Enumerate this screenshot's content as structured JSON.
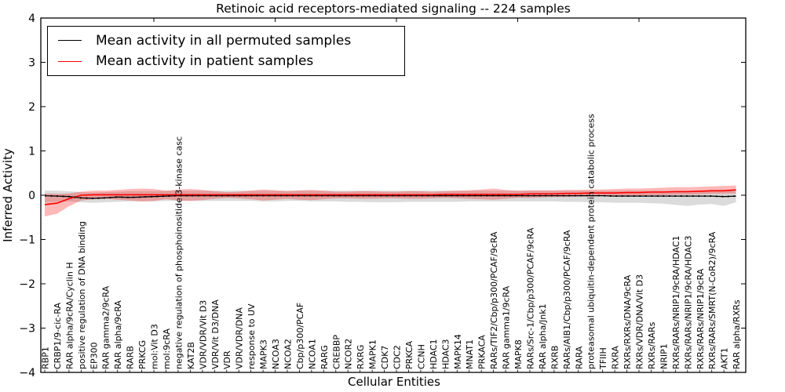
{
  "title": "Retinoic acid receptors-mediated signaling -- 224 samples",
  "legend": {
    "items": [
      {
        "label": "Mean activity in all permuted samples",
        "color": "#000000"
      },
      {
        "label": "Mean activity in patient samples",
        "color": "#ff0000"
      }
    ]
  },
  "colors": {
    "permuted_line": "#000000",
    "patient_line": "#ff0000",
    "permuted_band": "rgba(0,0,0,0.14)",
    "patient_band": "rgba(255,0,0,0.28)"
  },
  "chart_data": {
    "type": "line",
    "title": "Retinoic acid receptors-mediated signaling -- 224 samples",
    "xlabel": "Cellular Entities",
    "ylabel": "Inferred Activity",
    "ylim": [
      -4,
      4
    ],
    "grid": false,
    "legend_position": "upper left",
    "yticks": [
      4,
      3,
      2,
      1,
      0,
      -1,
      -2,
      -3,
      -4
    ],
    "ytick_labels": [
      "4",
      "3",
      "2",
      "1",
      "0",
      "−1",
      "−2",
      "−3",
      "−4"
    ],
    "categories": [
      "RBP1",
      "CRBP1/9-cic-RA",
      "RAR alpha/9cRA/Cyclin H",
      "positive regulation of DNA binding",
      "EP300",
      "RAR gamma2/9cRA",
      "RAR alpha/9cRA",
      "RARB",
      "PRKCG",
      "mol:Vit D3",
      "mol:9cRA",
      "negative regulation of phosphoinositide 3-kinase casc",
      "KAT2B",
      "VDR/VDR/Vit D3",
      "VDR/Vit D3/DNA",
      "VDR",
      "VDR/VDR/DNA",
      "response to UV",
      "MAPK3",
      "NCOA3",
      "NCOA2",
      "Cbp/p300/PCAF",
      "NCOA1",
      "RARG",
      "CREBBP",
      "NCOR2",
      "RXRG",
      "MAPK1",
      "CDK7",
      "CDC2",
      "PRKCA",
      "CCNH",
      "HDAC1",
      "HDAC3",
      "MAPK14",
      "MNAT1",
      "PRKACA",
      "RARs/TIF2/Cbp/p300/PCAF/9cRA",
      "RAR gamma1/9cRA",
      "MAPK8",
      "RARs/Src-1/Cbp/p300/PCAF/9cRA",
      "RAR alpha/Jnk1",
      "RXRB",
      "RARs/AIB1/Cbp/p300/PCAF/9cRA",
      "RARA",
      "proteasomal ubiquitin-dependent protein catabolic process",
      "TFIIH",
      "RXRA",
      "RXRs/RXRs/DNA/9cRA",
      "RXRs/VDR/DNA/Vit D3",
      "RXRs/RARs",
      "NRIP1",
      "RXRs/RARs/NRIP1/9cRA/HDAC1",
      "RXRs/RARs/NRIP1/9cRA/HDAC3",
      "RXRs/RARs/NRIP1/9cRA",
      "RXRs/RARs/SMRT(N-CoR2)/9cRA",
      "AKT1",
      "RAR alpha/RXRs"
    ],
    "series": [
      {
        "name": "Mean activity in all permuted samples",
        "color": "#000000",
        "band_color": "rgba(0,0,0,0.14)",
        "values": [
          -0.01,
          -0.02,
          -0.03,
          -0.06,
          -0.07,
          -0.06,
          -0.04,
          -0.05,
          -0.04,
          -0.03,
          -0.02,
          -0.01,
          -0.01,
          -0.01,
          -0.01,
          -0.01,
          -0.01,
          -0.01,
          -0.01,
          -0.01,
          -0.01,
          -0.01,
          -0.01,
          -0.01,
          -0.01,
          -0.01,
          -0.01,
          -0.01,
          -0.01,
          -0.01,
          -0.01,
          -0.01,
          -0.01,
          -0.01,
          -0.01,
          -0.01,
          -0.01,
          -0.01,
          -0.01,
          -0.01,
          -0.01,
          -0.01,
          -0.01,
          -0.01,
          -0.01,
          -0.01,
          -0.01,
          -0.02,
          -0.02,
          -0.02,
          -0.02,
          -0.02,
          -0.02,
          -0.02,
          -0.02,
          -0.02,
          -0.03,
          -0.02
        ],
        "band_low": [
          -0.16,
          -0.15,
          -0.14,
          -0.16,
          -0.17,
          -0.16,
          -0.15,
          -0.14,
          -0.14,
          -0.14,
          -0.13,
          -0.13,
          -0.13,
          -0.13,
          -0.13,
          -0.13,
          -0.13,
          -0.13,
          -0.14,
          -0.14,
          -0.13,
          -0.13,
          -0.14,
          -0.14,
          -0.14,
          -0.15,
          -0.15,
          -0.16,
          -0.16,
          -0.16,
          -0.15,
          -0.15,
          -0.15,
          -0.15,
          -0.15,
          -0.14,
          -0.14,
          -0.14,
          -0.14,
          -0.14,
          -0.14,
          -0.14,
          -0.14,
          -0.15,
          -0.15,
          -0.16,
          -0.16,
          -0.17,
          -0.17,
          -0.17,
          -0.18,
          -0.19,
          -0.22,
          -0.24,
          -0.21,
          -0.2,
          -0.24,
          -0.16
        ],
        "band_high": [
          0.1,
          0.1,
          0.09,
          0.07,
          0.06,
          0.07,
          0.08,
          0.09,
          0.09,
          0.09,
          0.1,
          0.1,
          0.1,
          0.1,
          0.1,
          0.1,
          0.1,
          0.1,
          0.1,
          0.1,
          0.1,
          0.1,
          0.1,
          0.1,
          0.1,
          0.1,
          0.1,
          0.1,
          0.1,
          0.1,
          0.1,
          0.1,
          0.1,
          0.1,
          0.1,
          0.1,
          0.1,
          0.1,
          0.1,
          0.1,
          0.1,
          0.1,
          0.1,
          0.1,
          0.1,
          0.1,
          0.1,
          0.1,
          0.1,
          0.1,
          0.1,
          0.1,
          0.1,
          0.1,
          0.1,
          0.1,
          0.09,
          0.1
        ]
      },
      {
        "name": "Mean activity in patient samples",
        "color": "#ff0000",
        "band_color": "rgba(255,0,0,0.28)",
        "values": [
          -0.21,
          -0.18,
          -0.08,
          0.0,
          0.01,
          0.01,
          0.01,
          0.01,
          0.01,
          0.01,
          0.01,
          0.01,
          0.01,
          0.01,
          0.01,
          0.01,
          0.01,
          0.01,
          0.01,
          0.01,
          0.01,
          0.01,
          0.01,
          0.01,
          0.01,
          0.01,
          0.01,
          0.01,
          0.01,
          0.01,
          0.01,
          0.01,
          0.01,
          0.02,
          0.02,
          0.02,
          0.02,
          0.02,
          0.02,
          0.02,
          0.03,
          0.03,
          0.03,
          0.04,
          0.04,
          0.05,
          0.05,
          0.05,
          0.06,
          0.06,
          0.07,
          0.07,
          0.08,
          0.08,
          0.09,
          0.1,
          0.1,
          0.12
        ],
        "band_low": [
          -0.48,
          -0.42,
          -0.25,
          -0.12,
          -0.09,
          -0.08,
          -0.1,
          -0.12,
          -0.14,
          -0.13,
          -0.09,
          -0.12,
          -0.13,
          -0.11,
          -0.08,
          -0.06,
          -0.07,
          -0.09,
          -0.12,
          -0.1,
          -0.08,
          -0.1,
          -0.11,
          -0.09,
          -0.07,
          -0.07,
          -0.08,
          -0.08,
          -0.07,
          -0.07,
          -0.08,
          -0.08,
          -0.07,
          -0.06,
          -0.07,
          -0.08,
          -0.09,
          -0.1,
          -0.08,
          -0.06,
          -0.06,
          -0.05,
          -0.04,
          -0.04,
          -0.03,
          -0.03,
          -0.02,
          -0.02,
          -0.01,
          -0.01,
          0.0,
          0.0,
          0.01,
          0.01,
          0.02,
          0.03,
          0.03,
          0.04
        ],
        "band_high": [
          0.04,
          0.03,
          0.04,
          0.08,
          0.1,
          0.1,
          0.12,
          0.14,
          0.15,
          0.14,
          0.1,
          0.13,
          0.14,
          0.12,
          0.09,
          0.07,
          0.08,
          0.1,
          0.13,
          0.11,
          0.09,
          0.11,
          0.12,
          0.1,
          0.08,
          0.08,
          0.09,
          0.09,
          0.08,
          0.08,
          0.09,
          0.09,
          0.08,
          0.09,
          0.1,
          0.11,
          0.13,
          0.15,
          0.12,
          0.1,
          0.11,
          0.11,
          0.11,
          0.12,
          0.12,
          0.13,
          0.13,
          0.14,
          0.15,
          0.15,
          0.16,
          0.17,
          0.18,
          0.18,
          0.19,
          0.2,
          0.21,
          0.22
        ]
      }
    ]
  }
}
